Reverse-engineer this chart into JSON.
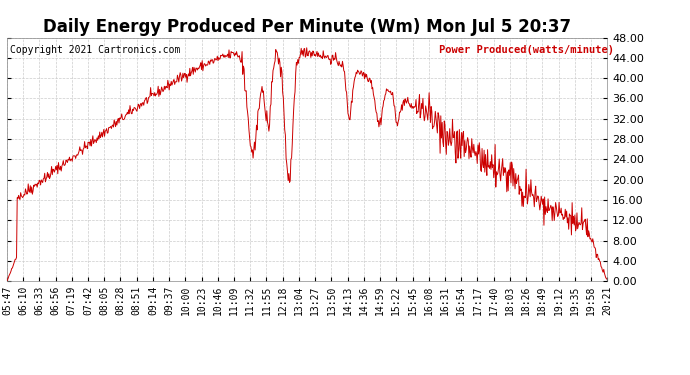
{
  "title": "Daily Energy Produced Per Minute (Wm) Mon Jul 5 20:37",
  "copyright": "Copyright 2021 Cartronics.com",
  "legend_label": "Power Produced(watts/minute)",
  "ylabel_color": "#CC0000",
  "copyright_color": "#000000",
  "background_color": "#FFFFFF",
  "line_color": "#CC0000",
  "grid_color": "#CCCCCC",
  "ymin": 0.0,
  "ymax": 48.0,
  "yticks": [
    0,
    4,
    8,
    12,
    16,
    20,
    24,
    28,
    32,
    36,
    40,
    44,
    48
  ],
  "title_fontsize": 12,
  "tick_label_fontsize": 7,
  "x_tick_labels": [
    "05:47",
    "06:10",
    "06:33",
    "06:56",
    "07:19",
    "07:42",
    "08:05",
    "08:28",
    "08:51",
    "09:14",
    "09:37",
    "10:00",
    "10:23",
    "10:46",
    "11:09",
    "11:32",
    "11:55",
    "12:18",
    "13:04",
    "13:27",
    "13:50",
    "14:13",
    "14:36",
    "14:59",
    "15:22",
    "15:45",
    "16:08",
    "16:31",
    "16:54",
    "17:17",
    "17:40",
    "18:03",
    "18:26",
    "18:49",
    "19:12",
    "19:35",
    "19:58",
    "20:21"
  ],
  "seed": 42
}
